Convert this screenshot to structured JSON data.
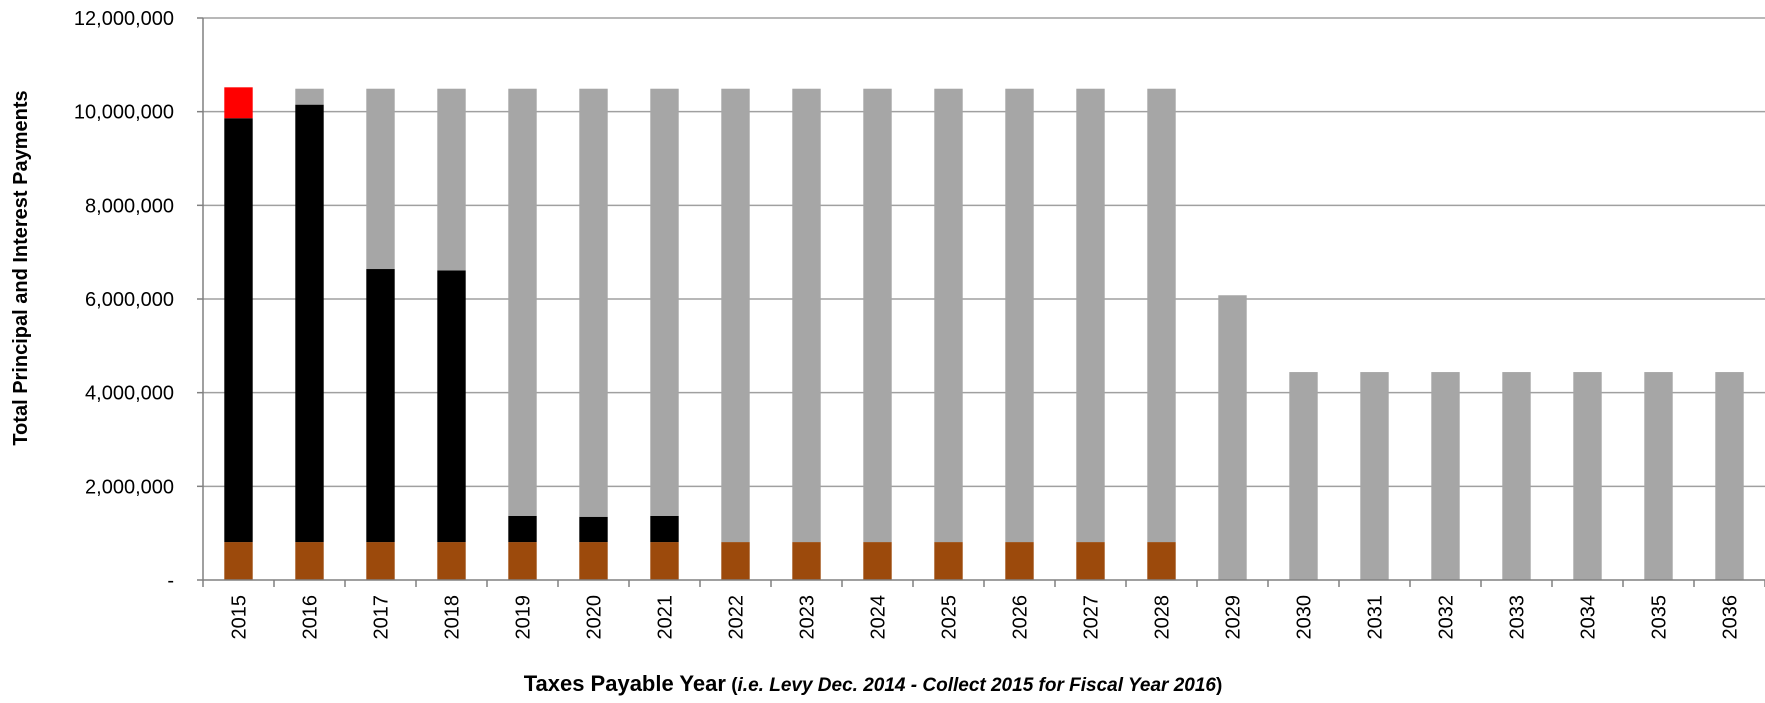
{
  "chart_data": {
    "type": "bar",
    "stacked": true,
    "categories": [
      "2015",
      "2016",
      "2017",
      "2018",
      "2019",
      "2020",
      "2021",
      "2022",
      "2023",
      "2024",
      "2025",
      "2026",
      "2027",
      "2028",
      "2029",
      "2030",
      "2031",
      "2032",
      "2033",
      "2034",
      "2035",
      "2036"
    ],
    "series": [
      {
        "color": "#9C4A0C",
        "values": [
          810000,
          810000,
          810000,
          810000,
          810000,
          810000,
          810000,
          810000,
          810000,
          810000,
          810000,
          810000,
          810000,
          810000,
          0,
          0,
          0,
          0,
          0,
          0,
          0,
          0
        ]
      },
      {
        "color": "#000000",
        "values": [
          9050000,
          9340000,
          5830000,
          5800000,
          560000,
          540000,
          560000,
          0,
          0,
          0,
          0,
          0,
          0,
          0,
          0,
          0,
          0,
          0,
          0,
          0,
          0,
          0
        ]
      },
      {
        "color": "#A6A6A6",
        "values": [
          0,
          340000,
          3850000,
          3880000,
          9120000,
          9140000,
          9120000,
          9680000,
          9680000,
          9680000,
          9680000,
          9680000,
          9680000,
          9680000,
          6080000,
          4440000,
          4440000,
          4440000,
          4440000,
          4440000,
          4440000,
          4440000
        ]
      },
      {
        "color": "#FF0000",
        "values": [
          660000,
          0,
          0,
          0,
          0,
          0,
          0,
          0,
          0,
          0,
          0,
          0,
          0,
          0,
          0,
          0,
          0,
          0,
          0,
          0,
          0,
          0
        ]
      }
    ],
    "ylim": [
      0,
      12000000
    ],
    "yticks": [
      0,
      2000000,
      4000000,
      6000000,
      8000000,
      10000000,
      12000000
    ],
    "ytick_labels": [
      "-",
      "2,000,000",
      "4,000,000",
      "6,000,000",
      "8,000,000",
      "10,000,000",
      "12,000,000"
    ],
    "ylabel": "Total Principal and Interest Payments",
    "xlabel_main": "Taxes Payable Year",
    "xlabel_paren_open": " (",
    "xlabel_italic": "i.e. Levy Dec. 2014 - Collect 2015 for Fiscal Year 2016",
    "xlabel_paren_close": ")",
    "grid": true,
    "legend": "none"
  }
}
